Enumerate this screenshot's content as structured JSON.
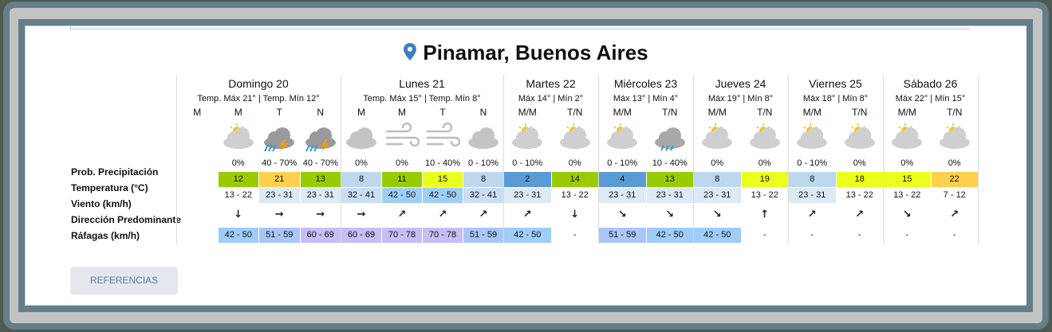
{
  "title": "Pinamar, Buenos Aires",
  "row_labels": [
    "Prob. Precipitación",
    "Temperatura (°C)",
    "Viento (km/h)",
    "Dirección Predominante",
    "Ráfagas (km/h)"
  ],
  "days": [
    {
      "name": "Domingo 20",
      "temps": "Temp. Máx 21° | Temp. Mín 12°",
      "periods": [
        {
          "label": "M"
        },
        {
          "label": "M",
          "precip": "0%",
          "temp": 12,
          "wind": "13 - 22",
          "direction": "↓",
          "gust": "42 - 50"
        },
        {
          "label": "T",
          "precip": "40 - 70%",
          "temp": 21,
          "wind": "23 - 31",
          "direction": "→",
          "gust": "51 - 59"
        },
        {
          "label": "N",
          "precip": "40 - 70%",
          "temp": 13,
          "wind": "23 - 31",
          "direction": "→",
          "gust": "60 - 69"
        }
      ]
    },
    {
      "name": "Lunes 21",
      "temps": "Temp. Máx 15° | Temp. Mín 8°",
      "periods": [
        {
          "label": "M",
          "precip": "0%",
          "temp": 8,
          "wind": "32 - 41",
          "direction": "→",
          "gust": "60 - 69"
        },
        {
          "label": "M",
          "precip": "0%",
          "temp": 11,
          "wind": "42 - 50",
          "direction": "↗",
          "gust": "70 - 78"
        },
        {
          "label": "T",
          "precip": "10 - 40%",
          "temp": 15,
          "wind": "42 - 50",
          "direction": "↗",
          "gust": "70 - 78"
        },
        {
          "label": "N",
          "precip": "0 - 10%",
          "temp": 8,
          "wind": "32 - 41",
          "direction": "↗",
          "gust": "51 - 59"
        }
      ]
    },
    {
      "name": "Martes 22",
      "temps": "Máx 14° | Mín 2°",
      "periods": [
        {
          "label": "M/M",
          "precip": "0 - 10%",
          "temp": 2,
          "wind": "23 - 31",
          "direction": "↗",
          "gust": "42 - 50"
        },
        {
          "label": "T/N",
          "precip": "0%",
          "temp": 14,
          "wind": "13 - 22",
          "direction": "↓",
          "gust": "-"
        }
      ]
    },
    {
      "name": "Miércoles 23",
      "temps": "Máx 13° | Mín 4°",
      "periods": [
        {
          "label": "M/M",
          "precip": "0 - 10%",
          "temp": 4,
          "wind": "23 - 31",
          "direction": "↘",
          "gust": "51 - 59"
        },
        {
          "label": "T/N",
          "precip": "10 - 40%",
          "temp": 13,
          "wind": "23 - 31",
          "direction": "↘",
          "gust": "42 - 50"
        }
      ]
    },
    {
      "name": "Jueves 24",
      "temps": "Máx 19° | Mín 8°",
      "periods": [
        {
          "label": "M/M",
          "precip": "0%",
          "temp": 8,
          "wind": "23 - 31",
          "direction": "↘",
          "gust": "42 - 50"
        },
        {
          "label": "T/N",
          "precip": "0%",
          "temp": 19,
          "wind": "13 - 22",
          "direction": "↑",
          "gust": "-"
        }
      ]
    },
    {
      "name": "Viernes 25",
      "temps": "Máx 18° | Mín 8°",
      "periods": [
        {
          "label": "M/M",
          "precip": "0 - 10%",
          "temp": 8,
          "wind": "23 - 31",
          "direction": "↗",
          "gust": "-"
        },
        {
          "label": "T/N",
          "precip": "0%",
          "temp": 18,
          "wind": "13 - 22",
          "direction": "↗",
          "gust": "-"
        }
      ]
    },
    {
      "name": "Sábado 26",
      "temps": "Máx 22° | Mín 15°",
      "periods": [
        {
          "label": "M/M",
          "precip": "0%",
          "temp": 15,
          "wind": "13 - 22",
          "direction": "↘",
          "gust": "-"
        },
        {
          "label": "T/N",
          "precip": "0%",
          "temp": 22,
          "wind": "7 - 12",
          "direction": "↗",
          "gust": "-"
        }
      ]
    }
  ],
  "button": "REFERENCIAS"
}
